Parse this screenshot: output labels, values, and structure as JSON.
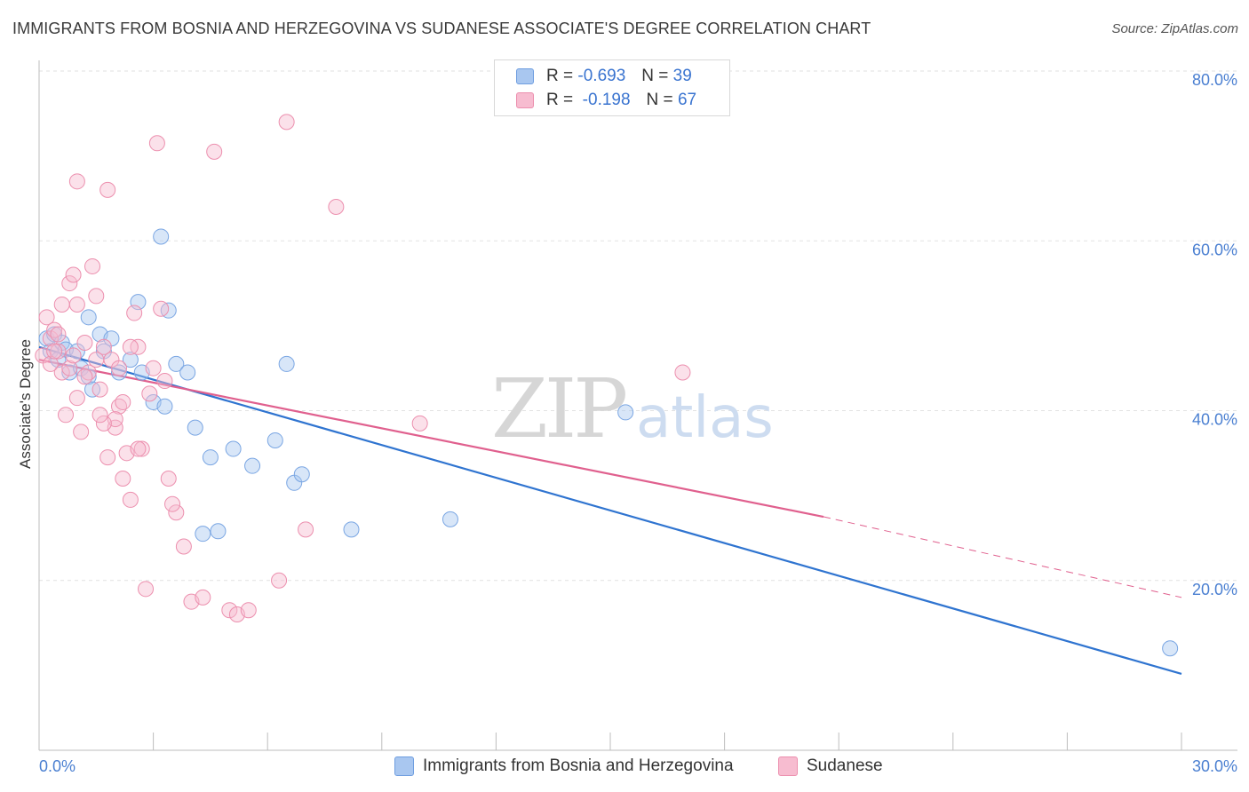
{
  "title": "IMMIGRANTS FROM BOSNIA AND HERZEGOVINA VS SUDANESE ASSOCIATE'S DEGREE CORRELATION CHART",
  "source": "Source: ZipAtlas.com",
  "watermark": {
    "zip": "ZIP",
    "atlas": "atlas"
  },
  "legend": {
    "rows": [
      {
        "r_label": "R =",
        "r_value": "-0.693",
        "n_label": "N =",
        "n_value": "39",
        "color": "#a9c7f0",
        "border": "#6f9ee0"
      },
      {
        "r_label": "R =",
        "r_value": "-0.198",
        "n_label": "N =",
        "n_value": "67",
        "color": "#f7bcd0",
        "border": "#ec8fae"
      }
    ]
  },
  "bottom_legend": [
    {
      "label": "Immigrants from Bosnia and Herzegovina",
      "color": "#a9c7f0",
      "border": "#6f9ee0"
    },
    {
      "label": "Sudanese",
      "color": "#f7bcd0",
      "border": "#ec8fae"
    }
  ],
  "chart_data": {
    "type": "scatter",
    "title": "IMMIGRANTS FROM BOSNIA AND HERZEGOVINA VS SUDANESE ASSOCIATE'S DEGREE CORRELATION CHART",
    "xlabel": "",
    "ylabel": "Associate's Degree",
    "xlim": [
      0,
      30
    ],
    "ylim": [
      0,
      80
    ],
    "x_tick_labels": {
      "left": "0.0%",
      "right": "30.0%"
    },
    "y_ticks": [
      {
        "value": 20,
        "label": "20.0%"
      },
      {
        "value": 40,
        "label": "40.0%"
      },
      {
        "value": 60,
        "label": "60.0%"
      },
      {
        "value": 80,
        "label": "80.0%"
      }
    ],
    "grid": true,
    "legend_position": "top-center",
    "series": [
      {
        "name": "Immigrants from Bosnia and Herzegovina",
        "color": "#7aa6e3",
        "fill": "rgba(169,199,240,0.45)",
        "line_color": "#2f74d0",
        "trend": {
          "x0": 0,
          "y0": 47.5,
          "x1": 30,
          "y1": 9.0
        },
        "points": [
          [
            0.2,
            48.5
          ],
          [
            0.3,
            47.0
          ],
          [
            0.4,
            49.0
          ],
          [
            0.5,
            46.0
          ],
          [
            0.6,
            48.0
          ],
          [
            0.7,
            47.2
          ],
          [
            0.8,
            44.5
          ],
          [
            1.0,
            47.0
          ],
          [
            1.1,
            45.0
          ],
          [
            1.3,
            44.0
          ],
          [
            1.3,
            51.0
          ],
          [
            1.4,
            42.5
          ],
          [
            1.6,
            49.0
          ],
          [
            1.7,
            47.0
          ],
          [
            1.9,
            48.5
          ],
          [
            2.1,
            44.5
          ],
          [
            2.4,
            46.0
          ],
          [
            2.6,
            52.8
          ],
          [
            2.7,
            44.5
          ],
          [
            3.0,
            41.0
          ],
          [
            3.2,
            60.5
          ],
          [
            3.4,
            51.8
          ],
          [
            3.6,
            45.5
          ],
          [
            3.3,
            40.5
          ],
          [
            3.9,
            44.5
          ],
          [
            4.1,
            38.0
          ],
          [
            4.3,
            25.5
          ],
          [
            4.5,
            34.5
          ],
          [
            4.7,
            25.8
          ],
          [
            5.1,
            35.5
          ],
          [
            5.6,
            33.5
          ],
          [
            6.2,
            36.5
          ],
          [
            6.5,
            45.5
          ],
          [
            6.7,
            31.5
          ],
          [
            6.9,
            32.5
          ],
          [
            8.2,
            26.0
          ],
          [
            10.8,
            27.2
          ],
          [
            15.4,
            39.8
          ],
          [
            29.7,
            12.0
          ]
        ]
      },
      {
        "name": "Sudanese",
        "color": "#ec8fae",
        "fill": "rgba(247,188,208,0.45)",
        "line_color": "#e0608e",
        "trend": {
          "x0": 0,
          "y0": 46.0,
          "x1": 20.6,
          "y1": 27.5
        },
        "trend_dashed": {
          "x0": 20.6,
          "y0": 27.5,
          "x1": 30,
          "y1": 18.0
        },
        "points": [
          [
            0.1,
            46.5
          ],
          [
            0.2,
            51.0
          ],
          [
            0.3,
            48.5
          ],
          [
            0.4,
            49.5
          ],
          [
            0.5,
            47.0
          ],
          [
            0.6,
            44.5
          ],
          [
            0.6,
            52.5
          ],
          [
            0.7,
            39.5
          ],
          [
            0.8,
            45.0
          ],
          [
            0.8,
            55.0
          ],
          [
            0.9,
            56.0
          ],
          [
            1.0,
            52.5
          ],
          [
            1.0,
            41.5
          ],
          [
            1.1,
            37.5
          ],
          [
            1.2,
            48.0
          ],
          [
            1.3,
            44.5
          ],
          [
            1.4,
            57.0
          ],
          [
            1.5,
            53.5
          ],
          [
            1.6,
            42.5
          ],
          [
            1.7,
            47.5
          ],
          [
            1.8,
            34.5
          ],
          [
            1.9,
            46.0
          ],
          [
            2.0,
            38.0
          ],
          [
            2.1,
            40.5
          ],
          [
            2.2,
            32.0
          ],
          [
            2.3,
            35.0
          ],
          [
            2.4,
            29.5
          ],
          [
            2.5,
            51.5
          ],
          [
            2.6,
            47.5
          ],
          [
            2.7,
            35.5
          ],
          [
            2.8,
            19.0
          ],
          [
            3.0,
            45.0
          ],
          [
            3.1,
            71.5
          ],
          [
            3.2,
            52.0
          ],
          [
            3.4,
            32.0
          ],
          [
            3.6,
            28.0
          ],
          [
            3.8,
            24.0
          ],
          [
            4.0,
            17.5
          ],
          [
            4.3,
            18.0
          ],
          [
            4.6,
            70.5
          ],
          [
            5.0,
            16.5
          ],
          [
            5.2,
            16.0
          ],
          [
            5.5,
            16.5
          ],
          [
            6.3,
            20.0
          ],
          [
            7.0,
            26.0
          ],
          [
            1.0,
            67.0
          ],
          [
            1.8,
            66.0
          ],
          [
            6.5,
            74.0
          ],
          [
            7.8,
            64.0
          ],
          [
            10.0,
            38.5
          ],
          [
            16.9,
            44.5
          ],
          [
            0.3,
            45.5
          ],
          [
            2.0,
            39.0
          ],
          [
            2.2,
            41.0
          ],
          [
            2.6,
            35.5
          ],
          [
            3.3,
            43.5
          ],
          [
            1.5,
            46.0
          ],
          [
            1.2,
            44.0
          ],
          [
            0.9,
            46.5
          ],
          [
            2.4,
            47.5
          ],
          [
            2.1,
            45.0
          ],
          [
            1.7,
            38.5
          ],
          [
            0.5,
            49.0
          ],
          [
            0.4,
            47.0
          ],
          [
            1.6,
            39.5
          ],
          [
            2.9,
            42.0
          ],
          [
            3.5,
            29.0
          ]
        ]
      }
    ]
  }
}
